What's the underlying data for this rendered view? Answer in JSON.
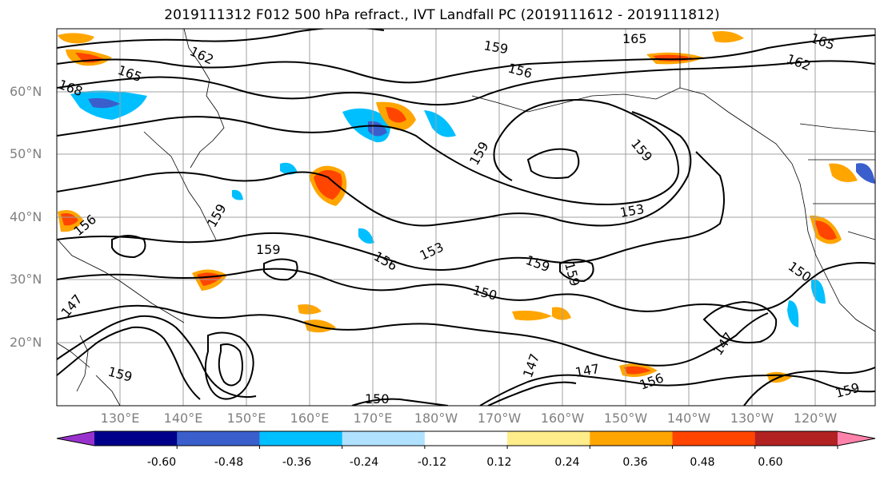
{
  "title": "2019111312 F012 500 hPa refract., IVT Landfall PC (2019111612 - 2019111812)",
  "lat_labels": [
    "60°N",
    "50°N",
    "40°N",
    "30°N",
    "20°N"
  ],
  "lon_labels": [
    "130°E",
    "140°E",
    "150°E",
    "160°E",
    "170°E",
    "180°W",
    "170°W",
    "160°W",
    "150°W",
    "140°W",
    "130°W",
    "120°W"
  ],
  "contour_labels": [
    "165",
    "162",
    "159",
    "156",
    "153",
    "150",
    "147",
    "168"
  ],
  "colorbar": {
    "colors": [
      "#9932cc",
      "#00008b",
      "#3a5fcd",
      "#00bfff",
      "#b0e2ff",
      "#ffffff",
      "#ffec8b",
      "#ffa500",
      "#ff4500",
      "#b22222",
      "#ff82ab"
    ],
    "tick_labels": [
      "-0.60",
      "-0.48",
      "-0.36",
      "-0.24",
      "-0.12",
      "0.12",
      "0.24",
      "0.36",
      "0.48",
      "0.60"
    ]
  }
}
